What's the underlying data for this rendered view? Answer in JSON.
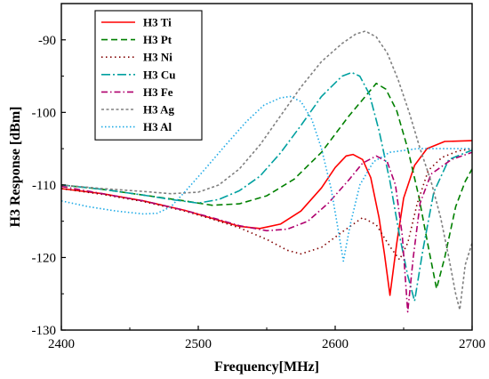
{
  "chart_data": {
    "type": "line",
    "title": "",
    "xlabel": "Frequency[MHz]",
    "ylabel": "H3 Response [dBm]",
    "xlim": [
      2400,
      2700
    ],
    "ylim": [
      -130,
      -85
    ],
    "xticks": [
      2400,
      2500,
      2600,
      2700
    ],
    "yticks": [
      -90,
      -100,
      -110,
      -120,
      -130
    ],
    "grid": false,
    "legend_position": "top-left",
    "series": [
      {
        "name": "H3 Ti",
        "color": "#ff0000",
        "dash": "solid",
        "points": [
          [
            2400,
            -110.5
          ],
          [
            2430,
            -111.2
          ],
          [
            2460,
            -112.2
          ],
          [
            2490,
            -113.5
          ],
          [
            2510,
            -114.6
          ],
          [
            2530,
            -115.7
          ],
          [
            2545,
            -116.0
          ],
          [
            2560,
            -115.4
          ],
          [
            2575,
            -113.6
          ],
          [
            2590,
            -110.4
          ],
          [
            2600,
            -107.6
          ],
          [
            2608,
            -106.0
          ],
          [
            2613,
            -105.8
          ],
          [
            2620,
            -106.5
          ],
          [
            2626,
            -109.0
          ],
          [
            2632,
            -114.5
          ],
          [
            2636,
            -119.5
          ],
          [
            2640,
            -125.2
          ],
          [
            2645,
            -118.0
          ],
          [
            2650,
            -111.8
          ],
          [
            2658,
            -107.3
          ],
          [
            2667,
            -105.0
          ],
          [
            2680,
            -104.0
          ],
          [
            2700,
            -103.9
          ]
        ]
      },
      {
        "name": "H3 Pt",
        "color": "#008000",
        "dash": "7,4",
        "points": [
          [
            2400,
            -110.0
          ],
          [
            2430,
            -110.6
          ],
          [
            2460,
            -111.4
          ],
          [
            2490,
            -112.2
          ],
          [
            2510,
            -112.8
          ],
          [
            2530,
            -112.6
          ],
          [
            2550,
            -111.5
          ],
          [
            2570,
            -109.2
          ],
          [
            2590,
            -105.5
          ],
          [
            2610,
            -100.5
          ],
          [
            2622,
            -97.8
          ],
          [
            2630,
            -96.0
          ],
          [
            2637,
            -96.8
          ],
          [
            2645,
            -99.8
          ],
          [
            2653,
            -105.0
          ],
          [
            2661,
            -111.5
          ],
          [
            2668,
            -118.5
          ],
          [
            2674,
            -124.3
          ],
          [
            2680,
            -120.0
          ],
          [
            2688,
            -113.0
          ],
          [
            2695,
            -109.5
          ],
          [
            2700,
            -107.8
          ]
        ]
      },
      {
        "name": "H3 Ni",
        "color": "#800000",
        "dash": "1.5,3.5",
        "points": [
          [
            2400,
            -110.5
          ],
          [
            2430,
            -111.3
          ],
          [
            2460,
            -112.3
          ],
          [
            2490,
            -113.6
          ],
          [
            2510,
            -114.7
          ],
          [
            2530,
            -115.9
          ],
          [
            2550,
            -117.5
          ],
          [
            2565,
            -119.0
          ],
          [
            2575,
            -119.5
          ],
          [
            2590,
            -118.6
          ],
          [
            2605,
            -116.5
          ],
          [
            2620,
            -114.5
          ],
          [
            2630,
            -115.5
          ],
          [
            2640,
            -118.5
          ],
          [
            2647,
            -120.3
          ],
          [
            2653,
            -118.0
          ],
          [
            2660,
            -112.5
          ],
          [
            2668,
            -108.0
          ],
          [
            2678,
            -106.2
          ],
          [
            2690,
            -105.3
          ],
          [
            2700,
            -105.0
          ]
        ]
      },
      {
        "name": "H3 Cu",
        "color": "#00a0a0",
        "dash": "10,3,2,3",
        "points": [
          [
            2400,
            -110.0
          ],
          [
            2430,
            -110.6
          ],
          [
            2460,
            -111.4
          ],
          [
            2480,
            -112.0
          ],
          [
            2500,
            -112.5
          ],
          [
            2515,
            -112.0
          ],
          [
            2530,
            -110.8
          ],
          [
            2545,
            -108.8
          ],
          [
            2560,
            -105.6
          ],
          [
            2575,
            -101.8
          ],
          [
            2590,
            -97.8
          ],
          [
            2605,
            -95.0
          ],
          [
            2612,
            -94.5
          ],
          [
            2618,
            -95.0
          ],
          [
            2625,
            -97.5
          ],
          [
            2632,
            -102.5
          ],
          [
            2640,
            -109.5
          ],
          [
            2647,
            -117.0
          ],
          [
            2653,
            -122.5
          ],
          [
            2658,
            -126.0
          ],
          [
            2664,
            -119.0
          ],
          [
            2672,
            -111.0
          ],
          [
            2683,
            -106.5
          ],
          [
            2700,
            -105.2
          ]
        ]
      },
      {
        "name": "H3 Fe",
        "color": "#b0006e",
        "dash": "7,3,1.5,3",
        "points": [
          [
            2400,
            -110.2
          ],
          [
            2430,
            -111.2
          ],
          [
            2460,
            -112.2
          ],
          [
            2490,
            -113.5
          ],
          [
            2510,
            -114.5
          ],
          [
            2530,
            -115.6
          ],
          [
            2550,
            -116.3
          ],
          [
            2565,
            -116.1
          ],
          [
            2580,
            -115.0
          ],
          [
            2595,
            -112.5
          ],
          [
            2610,
            -109.3
          ],
          [
            2620,
            -107.0
          ],
          [
            2630,
            -106.0
          ],
          [
            2638,
            -106.8
          ],
          [
            2644,
            -110.0
          ],
          [
            2649,
            -117.0
          ],
          [
            2653,
            -127.5
          ],
          [
            2657,
            -120.0
          ],
          [
            2662,
            -112.5
          ],
          [
            2670,
            -108.5
          ],
          [
            2685,
            -106.5
          ],
          [
            2700,
            -105.5
          ]
        ]
      },
      {
        "name": "H3 Ag",
        "color": "#808080",
        "dash": "3,2.5",
        "points": [
          [
            2400,
            -110.0
          ],
          [
            2430,
            -110.5
          ],
          [
            2460,
            -110.9
          ],
          [
            2480,
            -111.2
          ],
          [
            2500,
            -111.0
          ],
          [
            2515,
            -110.0
          ],
          [
            2530,
            -107.8
          ],
          [
            2545,
            -104.5
          ],
          [
            2560,
            -100.5
          ],
          [
            2575,
            -96.5
          ],
          [
            2590,
            -93.0
          ],
          [
            2605,
            -90.5
          ],
          [
            2615,
            -89.2
          ],
          [
            2622,
            -88.8
          ],
          [
            2630,
            -89.6
          ],
          [
            2638,
            -91.8
          ],
          [
            2646,
            -95.5
          ],
          [
            2654,
            -100.0
          ],
          [
            2662,
            -105.0
          ],
          [
            2670,
            -109.5
          ],
          [
            2677,
            -114.5
          ],
          [
            2683,
            -120.0
          ],
          [
            2688,
            -125.0
          ],
          [
            2691,
            -127.2
          ],
          [
            2695,
            -121.0
          ],
          [
            2700,
            -118.0
          ]
        ]
      },
      {
        "name": "H3 Al",
        "color": "#1eaae6",
        "dash": "1.5,2.5",
        "points": [
          [
            2400,
            -112.2
          ],
          [
            2420,
            -113.0
          ],
          [
            2440,
            -113.6
          ],
          [
            2460,
            -114.0
          ],
          [
            2470,
            -113.9
          ],
          [
            2480,
            -113.0
          ],
          [
            2490,
            -111.0
          ],
          [
            2505,
            -107.8
          ],
          [
            2520,
            -104.5
          ],
          [
            2535,
            -101.3
          ],
          [
            2548,
            -99.0
          ],
          [
            2560,
            -98.0
          ],
          [
            2567,
            -97.8
          ],
          [
            2575,
            -98.5
          ],
          [
            2583,
            -101.0
          ],
          [
            2590,
            -105.0
          ],
          [
            2597,
            -110.5
          ],
          [
            2602,
            -116.0
          ],
          [
            2606,
            -120.5
          ],
          [
            2611,
            -115.5
          ],
          [
            2618,
            -110.0
          ],
          [
            2628,
            -106.8
          ],
          [
            2640,
            -105.5
          ],
          [
            2660,
            -105.0
          ],
          [
            2680,
            -105.0
          ],
          [
            2700,
            -105.0
          ]
        ]
      }
    ]
  }
}
